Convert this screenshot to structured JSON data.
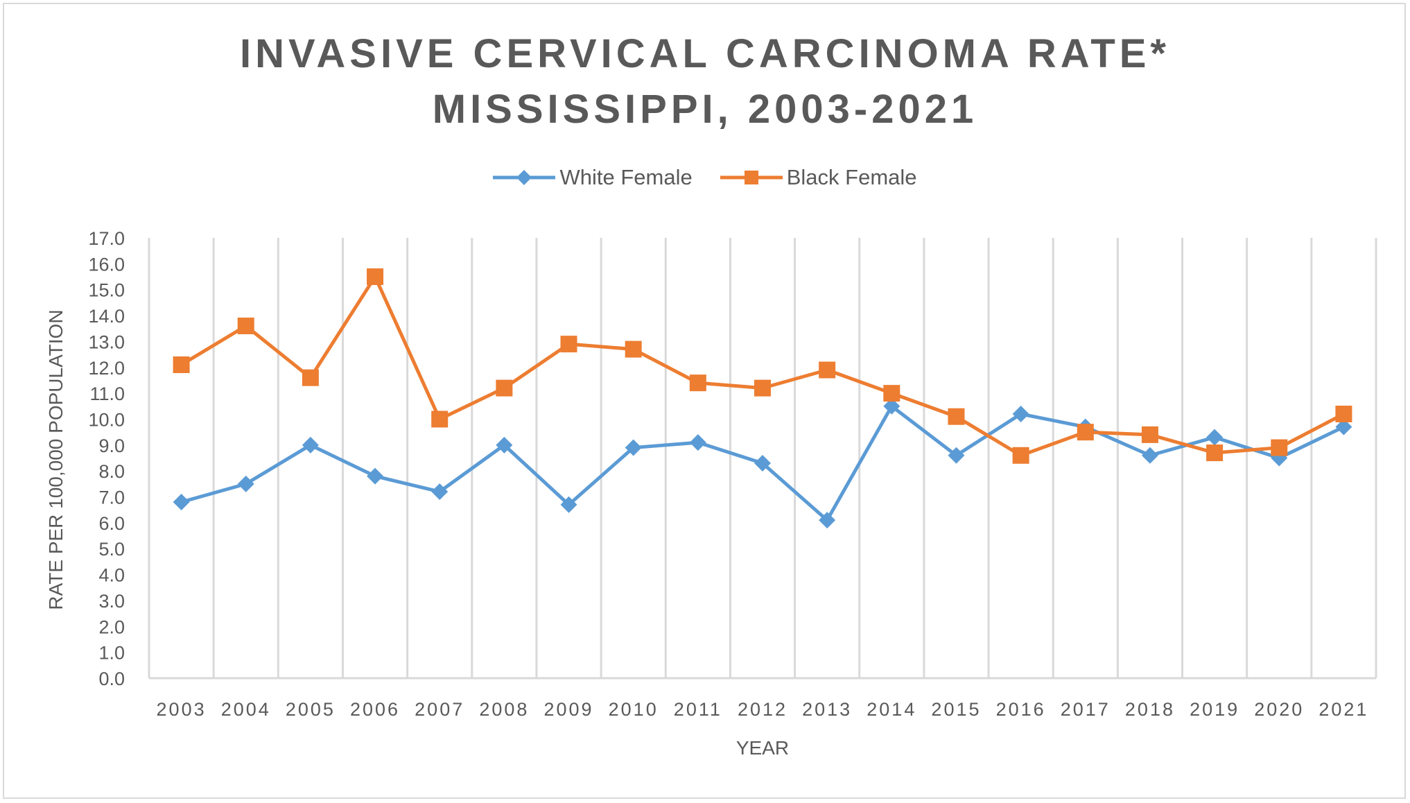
{
  "chart_data": {
    "type": "line",
    "title": "INVASIVE CERVICAL CARCINOMA RATE*",
    "subtitle": "MISSISSIPPI, 2003-2021",
    "xlabel": "YEAR",
    "ylabel": "RATE PER 100,000 POPULATION",
    "ylim": [
      0,
      17
    ],
    "ytick_step": 1,
    "grid": "vertical",
    "legend_position": "top",
    "x": [
      "2003",
      "2004",
      "2005",
      "2006",
      "2007",
      "2008",
      "2009",
      "2010",
      "2011",
      "2012",
      "2013",
      "2014",
      "2015",
      "2016",
      "2017",
      "2018",
      "2019",
      "2020",
      "2021"
    ],
    "series": [
      {
        "name": "White Female",
        "color": "#5b9bd5",
        "marker": "diamond",
        "values": [
          6.8,
          7.5,
          9.0,
          7.8,
          7.2,
          9.0,
          6.7,
          8.9,
          9.1,
          8.3,
          6.1,
          10.5,
          8.6,
          10.2,
          9.7,
          8.6,
          9.3,
          8.5,
          9.7
        ]
      },
      {
        "name": "Black Female",
        "color": "#ed7d31",
        "marker": "square",
        "values": [
          12.1,
          13.6,
          11.6,
          15.5,
          10.0,
          11.2,
          12.9,
          12.7,
          11.4,
          11.2,
          11.9,
          11.0,
          10.1,
          8.6,
          9.5,
          9.4,
          8.7,
          8.9,
          10.2
        ]
      }
    ]
  }
}
